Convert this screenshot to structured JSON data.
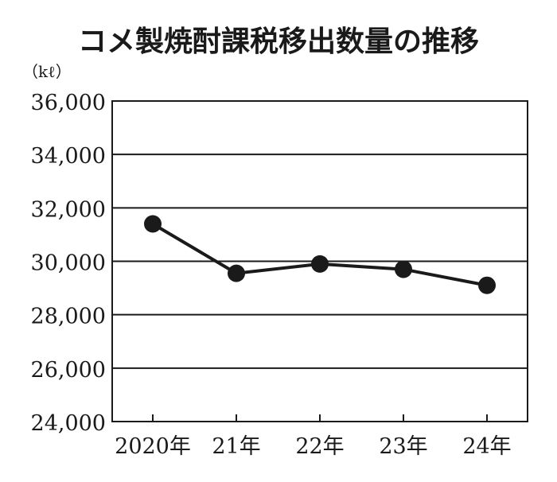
{
  "chart_data": {
    "type": "line",
    "title": "コメ製焼酎課税移出数量の推移",
    "unit_label": "（kℓ）",
    "categories": [
      "2020年",
      "21年",
      "22年",
      "23年",
      "24年"
    ],
    "values": [
      31400,
      29550,
      29900,
      29700,
      29100
    ],
    "ylim": [
      24000,
      36000
    ],
    "yticks": [
      24000,
      26000,
      28000,
      30000,
      32000,
      34000,
      36000
    ],
    "ytick_labels": [
      "24,000",
      "26,000",
      "28,000",
      "30,000",
      "32,000",
      "34,000",
      "36,000"
    ],
    "grid": true,
    "legend": "none",
    "colors": {
      "line": "#1a1a1a",
      "grid": "#1a1a1a",
      "text": "#1a1a1a"
    }
  }
}
